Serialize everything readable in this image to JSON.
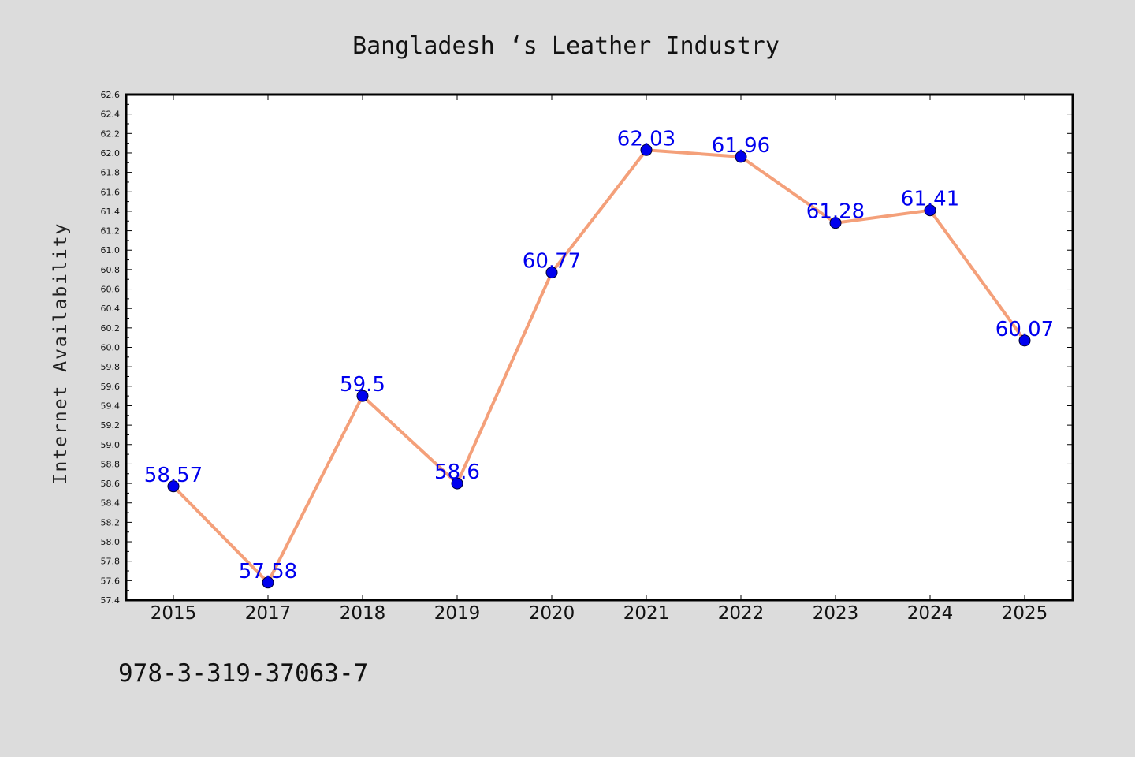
{
  "chart_data": {
    "type": "line",
    "title": "Bangladesh ‘s Leather Industry",
    "xlabel": "",
    "ylabel": "Internet Availability",
    "categories": [
      "2015",
      "2017",
      "2018",
      "2019",
      "2020",
      "2021",
      "2022",
      "2023",
      "2024",
      "2025"
    ],
    "series": [
      {
        "values": [
          58.57,
          57.58,
          59.5,
          58.6,
          60.77,
          62.03,
          61.96,
          61.28,
          61.41,
          60.07
        ],
        "data_labels": [
          "58.57",
          "57.58",
          "59.5",
          "58.6",
          "60.77",
          "62.03",
          "61.96",
          "61.28",
          "61.41",
          "60.07"
        ],
        "line_color": "#f4a07a",
        "marker_color": "#0000ee",
        "label_color": "#0000ee"
      }
    ],
    "ylim": [
      57.4,
      62.6
    ],
    "yticks": [
      "57.4",
      "57.6",
      "57.8",
      "58.0",
      "58.2",
      "58.4",
      "58.6",
      "58.8",
      "59.0",
      "59.2",
      "59.4",
      "59.6",
      "59.8",
      "60.0",
      "60.2",
      "60.4",
      "60.6",
      "60.8",
      "61.0",
      "61.2",
      "61.4",
      "61.6",
      "61.8",
      "62.0",
      "62.2",
      "62.4",
      "62.6"
    ],
    "grid": false,
    "legend": "none"
  },
  "footer": {
    "isbn": "978-3-319-37063-7"
  },
  "colors": {
    "figure_background": "#dcdcdc",
    "plot_background": "#ffffff",
    "axis": "#000000"
  }
}
